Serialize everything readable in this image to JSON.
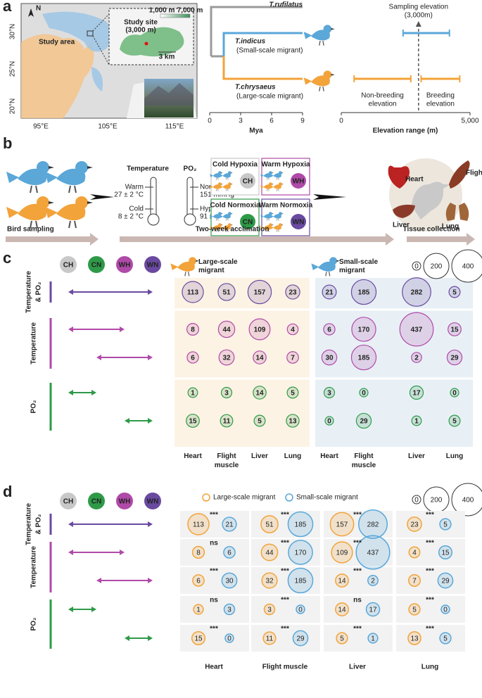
{
  "panel_a": {
    "label": "a",
    "map": {
      "north": "N",
      "study_area": "Study area",
      "study_site": [
        "Study site",
        "(3,000 m)"
      ],
      "elevation_scale": [
        "1,000 m",
        "7,000 m"
      ],
      "scale_bar": "3 km",
      "latitudes": [
        "30°N",
        "25°N",
        "20°N"
      ],
      "longitudes": [
        "95°E",
        "105°E",
        "115°E"
      ]
    },
    "tree": {
      "xlabel": "Mya",
      "xlim": [
        0,
        9
      ],
      "xticks": [
        0,
        3,
        6,
        9
      ],
      "taxa": [
        {
          "name": "T.rufilatus",
          "color": "#9a9a9a"
        },
        {
          "name": "T.indicus",
          "note": "(Small-scale migrant)",
          "color": "#5aa7d8",
          "ranges": [
            {
              "values": [
                2400,
                4200
              ]
            }
          ]
        },
        {
          "name": "T.chrysaeus",
          "note": "(Large-scale migrant)",
          "color": "#f2a33a",
          "ranges": [
            {
              "name": [
                "Non-breeding",
                "elevation"
              ],
              "values": [
                500,
                2700
              ]
            },
            {
              "name": [
                "Breeding",
                "elevation"
              ],
              "values": [
                3100,
                4600
              ]
            }
          ]
        }
      ]
    },
    "elevation": {
      "title": [
        "Sampling elevation",
        "(3,000m)"
      ],
      "sampling": 3000,
      "xlabel": "Elevation range (m)",
      "xlim": [
        0,
        5000
      ],
      "xticks": [
        0,
        {
          "value": 5000,
          "label": "5,000"
        }
      ]
    }
  },
  "panel_b": {
    "label": "b",
    "thermometers": [
      {
        "name": "Temperature",
        "high": [
          "Warm",
          "27 ± 2 °C"
        ],
        "low": [
          "Cold",
          "8 ± 2 °C"
        ]
      },
      {
        "name": "PO₂",
        "high": [
          "Normoxia",
          "151 mmHg"
        ],
        "low": [
          "Hypoxia",
          "91 mmHg"
        ]
      }
    ],
    "conditions": [
      {
        "name": "Cold Hypoxia",
        "code": "CH",
        "color": "#c8c8c8"
      },
      {
        "name": "Warm Hypoxia",
        "code": "WH",
        "color": "#b04aa8"
      },
      {
        "name": "Cold Normoxia",
        "code": "CN",
        "color": "#2e9a48"
      },
      {
        "name": "Warm Normoxia",
        "code": "WN",
        "color": "#6a4aa0"
      }
    ],
    "tissues": [
      "Heart",
      "Flight muscle",
      "Liver",
      "Lung"
    ],
    "steps": [
      "Bird sampling",
      "Two-week acclimation",
      "Tissue collection"
    ]
  },
  "panel_c": {
    "label": "c",
    "row_groups": [
      {
        "name": [
          "Temperature",
          "& PO₂"
        ],
        "color": "#6a4aa0"
      },
      {
        "name": [
          "Temperature"
        ],
        "color": "#b04aa8"
      },
      {
        "name": [
          "PO₂"
        ],
        "color": "#2e9a48"
      }
    ],
    "migrants": [
      {
        "name": "Large-scale migrant",
        "color": "#f2a33a",
        "values": [
          [
            113,
            51,
            157,
            23
          ],
          [
            8,
            44,
            109,
            4
          ],
          [
            6,
            32,
            14,
            7
          ],
          [
            1,
            3,
            14,
            5
          ],
          [
            15,
            11,
            5,
            13
          ]
        ]
      },
      {
        "name": "Small-scale migrant",
        "color": "#5aa7d8",
        "values": [
          [
            21,
            185,
            282,
            5
          ],
          [
            6,
            170,
            437,
            15
          ],
          [
            30,
            185,
            2,
            29
          ],
          [
            3,
            0,
            17,
            0
          ],
          [
            0,
            29,
            1,
            5
          ]
        ]
      }
    ],
    "size_legend": [
      0,
      200,
      400
    ]
  },
  "panel_d": {
    "label": "d",
    "significance": [
      [
        "***",
        "***",
        "***",
        "***"
      ],
      [
        "ns",
        "***",
        "***",
        "***"
      ],
      [
        "***",
        "***",
        "***",
        "***"
      ],
      [
        "ns",
        "***",
        "ns",
        "***"
      ],
      [
        "***",
        "***",
        "***",
        "***"
      ]
    ]
  }
}
